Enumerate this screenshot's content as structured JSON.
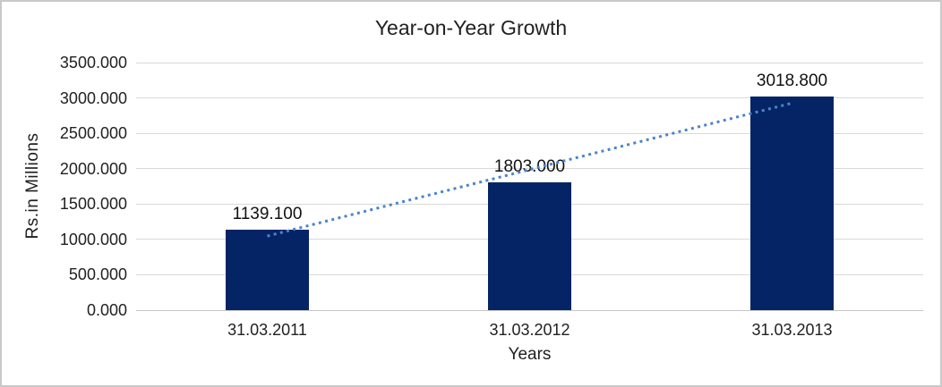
{
  "chart_data": {
    "type": "bar",
    "title": "Year-on-Year Growth",
    "xlabel": "Years",
    "ylabel": "Rs.in Millions",
    "categories": [
      "31.03.2011",
      "31.03.2012",
      "31.03.2013"
    ],
    "values": [
      1139.1,
      1803.0,
      3018.8
    ],
    "data_labels": [
      "1139.100",
      "1803.000",
      "3018.800"
    ],
    "yticks": [
      "3500.000",
      "3000.000",
      "2500.000",
      "2000.000",
      "1500.000",
      "1000.000",
      "500.000",
      "0.000"
    ],
    "ylim": [
      0,
      3500
    ],
    "ytick_step": 500,
    "grid": "horizontal",
    "legend": "none",
    "trendline": {
      "type": "linear",
      "style": "dotted"
    },
    "colors": {
      "bar": "#052465",
      "trendline": "#4A84CC",
      "gridline": "#D9D9D9",
      "baseline": "#C6C6C6",
      "text": "#212121",
      "border": "#C9C9C9",
      "background": "#FFFFFF"
    }
  }
}
